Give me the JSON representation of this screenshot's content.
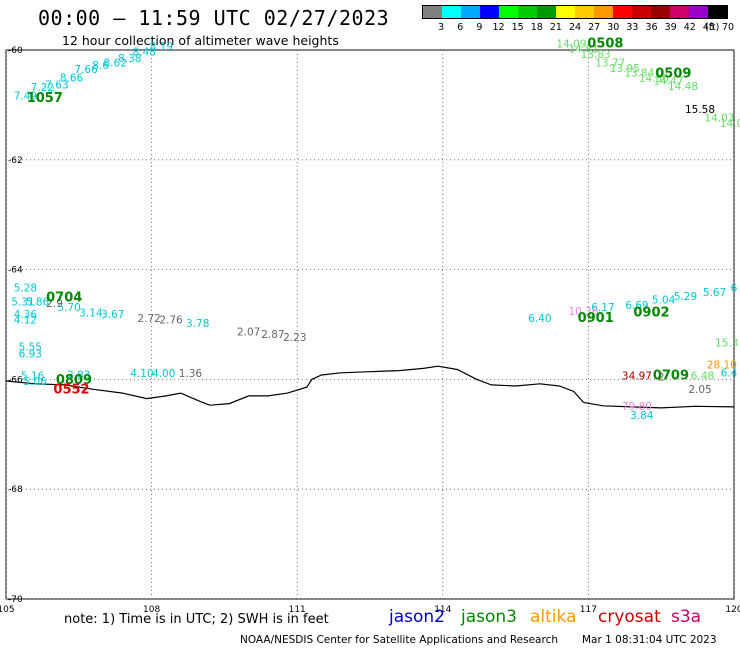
{
  "header": {
    "title": "00:00 – 11:59 UTC 02/27/2023",
    "subtitle": "12 hour collection of altimeter wave heights"
  },
  "colorbar": {
    "colors": [
      "#808080",
      "#00ffff",
      "#00aaff",
      "#0000ff",
      "#00ff00",
      "#00cc00",
      "#009900",
      "#ffff00",
      "#ffcc00",
      "#ff9900",
      "#ff0000",
      "#cc0000",
      "#990000",
      "#cc0066",
      "#9900cc",
      "#000000"
    ],
    "ticks": [
      "3",
      "6",
      "9",
      "12",
      "15",
      "18",
      "21",
      "24",
      "27",
      "30",
      "33",
      "36",
      "39",
      "42",
      "45",
      "70"
    ],
    "unit": "(ft)"
  },
  "map": {
    "lon_range": [
      105,
      120
    ],
    "lat_range": [
      -70,
      -60
    ],
    "lon_ticks": [
      "105",
      "108",
      "111",
      "114",
      "117",
      "120"
    ],
    "lat_ticks": [
      "-60",
      "-62",
      "-64",
      "-66",
      "-68",
      "-70"
    ],
    "coastline": [
      [
        105,
        -66.03
      ],
      [
        105.6,
        -66.08
      ],
      [
        106.2,
        -66.1
      ],
      [
        106.8,
        -66.18
      ],
      [
        107.4,
        -66.25
      ],
      [
        107.9,
        -66.35
      ],
      [
        108.3,
        -66.3
      ],
      [
        108.6,
        -66.25
      ],
      [
        109.0,
        -66.4
      ],
      [
        109.2,
        -66.47
      ],
      [
        109.6,
        -66.44
      ],
      [
        110.0,
        -66.3
      ],
      [
        110.4,
        -66.3
      ],
      [
        110.8,
        -66.25
      ],
      [
        111.2,
        -66.14
      ],
      [
        111.3,
        -66.0
      ],
      [
        111.5,
        -65.92
      ],
      [
        111.9,
        -65.88
      ],
      [
        112.5,
        -65.86
      ],
      [
        113.1,
        -65.84
      ],
      [
        113.6,
        -65.8
      ],
      [
        113.9,
        -65.76
      ],
      [
        114.3,
        -65.82
      ],
      [
        114.7,
        -66.0
      ],
      [
        115.0,
        -66.1
      ],
      [
        115.5,
        -66.12
      ],
      [
        116.0,
        -66.08
      ],
      [
        116.4,
        -66.12
      ],
      [
        116.7,
        -66.22
      ],
      [
        116.9,
        -66.42
      ],
      [
        117.3,
        -66.48
      ],
      [
        117.9,
        -66.5
      ],
      [
        118.5,
        -66.52
      ],
      [
        119.2,
        -66.49
      ],
      [
        120,
        -66.5
      ]
    ],
    "tracks": [
      {
        "color": "#00c8d8",
        "labels": [
          [
            "7.49",
            105.4,
            -60.9
          ],
          [
            "7.22",
            105.75,
            -60.75
          ],
          [
            "7.63",
            106.05,
            -60.7
          ],
          [
            "8.66",
            106.35,
            -60.57
          ],
          [
            "7.66",
            106.65,
            -60.42
          ],
          [
            "8.6",
            106.95,
            -60.35
          ],
          [
            "8.62",
            107.25,
            -60.3
          ],
          [
            "8.38",
            107.55,
            -60.22
          ],
          [
            "8.48",
            107.85,
            -60.1
          ],
          [
            "8.19",
            108.2,
            -60.0
          ]
        ]
      },
      {
        "color": "#008800",
        "labels": [
          [
            "1057",
            105.8,
            -60.95
          ]
        ],
        "bold": true
      },
      {
        "color": "#66dd66",
        "labels": [
          [
            "14.09",
            116.65,
            -59.95
          ],
          [
            "14.81",
            116.9,
            -60.05
          ],
          [
            "13.83",
            117.15,
            -60.15
          ],
          [
            "13.77",
            117.45,
            -60.3
          ],
          [
            "13.95",
            117.75,
            -60.4
          ],
          [
            "13.84",
            118.05,
            -60.48
          ],
          [
            "14.30",
            118.35,
            -60.58
          ],
          [
            "14.47",
            118.65,
            -60.63
          ],
          [
            "14.48",
            118.95,
            -60.73
          ],
          [
            "14.03",
            119.7,
            -61.3
          ],
          [
            "14.0",
            119.95,
            -61.4
          ]
        ]
      },
      {
        "color": "#008800",
        "labels": [
          [
            "0508",
            117.35,
            -59.95
          ],
          [
            "0509",
            118.75,
            -60.5
          ]
        ],
        "bold": true
      },
      {
        "color": "#000000",
        "labels": [
          [
            "15.58",
            119.3,
            -61.15
          ]
        ]
      },
      {
        "color": "#00c8d8",
        "labels": [
          [
            "5.28",
            105.4,
            -64.4
          ],
          [
            "5.31",
            105.35,
            -64.65
          ],
          [
            "5.86",
            105.65,
            -64.65
          ],
          [
            "4.36",
            105.4,
            -64.88
          ],
          [
            "4.12",
            105.4,
            -64.98
          ],
          [
            "5.70",
            106.3,
            -64.75
          ],
          [
            "3.14",
            106.75,
            -64.85
          ],
          [
            "3.67",
            107.2,
            -64.88
          ],
          [
            "3.78",
            108.95,
            -65.05
          ],
          [
            "5.55",
            105.5,
            -65.47
          ],
          [
            "6.93",
            105.5,
            -65.6
          ],
          [
            "5.16",
            105.55,
            -66.0
          ],
          [
            "5.06",
            105.6,
            -66.1
          ],
          [
            "2.83",
            106.5,
            -65.98
          ],
          [
            "4.10",
            107.8,
            -65.96
          ],
          [
            "4.00",
            108.25,
            -65.96
          ]
        ]
      },
      {
        "color": "#666666",
        "labels": [
          [
            "2.9",
            106.0,
            -64.68
          ],
          [
            "2.72",
            107.95,
            -64.95
          ],
          [
            "2.76",
            108.4,
            -64.98
          ],
          [
            "2.07",
            110.0,
            -65.2
          ],
          [
            "2.87",
            110.5,
            -65.25
          ],
          [
            "2.23",
            110.95,
            -65.3
          ],
          [
            "1.36",
            108.8,
            -65.96
          ]
        ]
      },
      {
        "color": "#008800",
        "labels": [
          [
            "0704",
            106.2,
            -64.58
          ],
          [
            "0809",
            106.4,
            -66.08
          ]
        ],
        "bold": true
      },
      {
        "color": "#dd0000",
        "labels": [
          [
            "0552",
            106.35,
            -66.26
          ]
        ],
        "bold": true
      },
      {
        "color": "#00c8d8",
        "labels": [
          [
            "6.40",
            116.0,
            -64.95
          ],
          [
            "6.17",
            117.3,
            -64.75
          ],
          [
            "6.69",
            118.0,
            -64.72
          ],
          [
            "5.04",
            118.55,
            -64.62
          ],
          [
            "5.29",
            119.0,
            -64.55
          ],
          [
            "5.67",
            119.6,
            -64.48
          ],
          [
            "6",
            120.0,
            -64.4
          ],
          [
            "6.4",
            119.9,
            -65.95
          ],
          [
            "3.84",
            118.1,
            -66.72
          ]
        ]
      },
      {
        "color": "#ee88dd",
        "labels": [
          [
            "10.36",
            116.9,
            -64.83
          ],
          [
            "79.80",
            118.0,
            -66.56
          ]
        ]
      },
      {
        "color": "#008800",
        "labels": [
          [
            "0901",
            117.15,
            -64.95
          ],
          [
            "0902",
            118.3,
            -64.85
          ],
          [
            "0709",
            118.7,
            -66.0
          ]
        ],
        "bold": true
      },
      {
        "color": "#aa0000",
        "labels": [
          [
            "34.97",
            118.0,
            -66.0
          ]
        ]
      },
      {
        "color": "#666666",
        "labels": [
          [
            "2",
            118.5,
            -66.02
          ],
          [
            "2.05",
            119.3,
            -66.25
          ]
        ]
      },
      {
        "color": "#66dd66",
        "labels": [
          [
            "15.3",
            119.85,
            -65.4
          ],
          [
            "6.48",
            119.35,
            -66.0
          ]
        ]
      },
      {
        "color": "#ff9900",
        "labels": [
          [
            "28.10",
            119.75,
            -65.8
          ]
        ]
      }
    ]
  },
  "footer": {
    "note": "note: 1) Time is in UTC; 2) SWH is in feet",
    "satellites": [
      {
        "name": "jason2",
        "color": "#0000cc"
      },
      {
        "name": "jason3",
        "color": "#008800"
      },
      {
        "name": "altika",
        "color": "#ff9900"
      },
      {
        "name": "cryosat",
        "color": "#cc0000"
      },
      {
        "name": "s3a",
        "color": "#cc0066"
      }
    ],
    "credit": "NOAA/NESDIS Center for Satellite Applications and Research",
    "date": "Mar  1 08:31:04 UTC 2023"
  }
}
